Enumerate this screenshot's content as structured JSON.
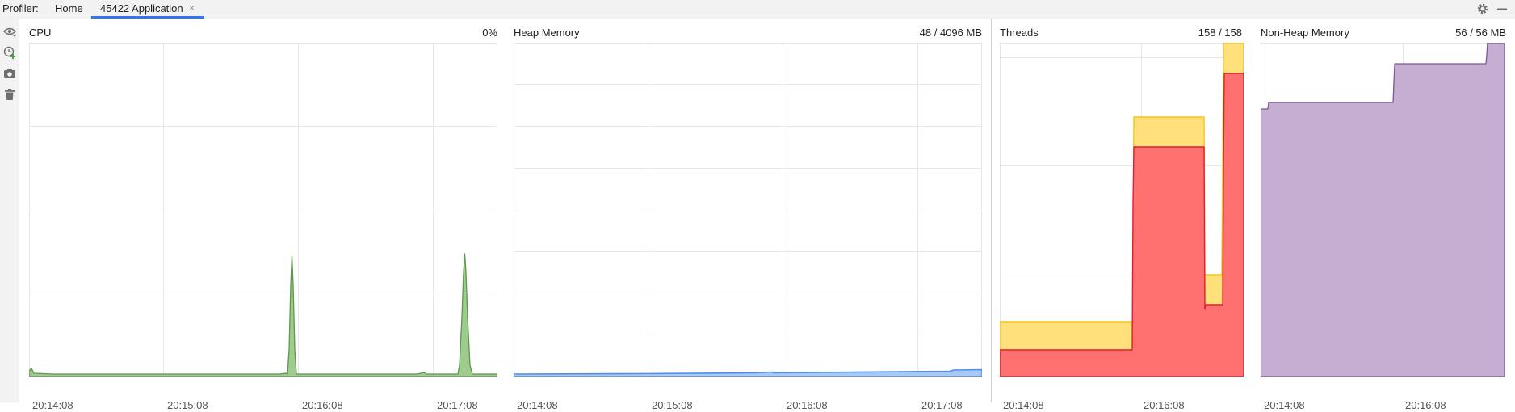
{
  "header": {
    "profiler_label": "Profiler:",
    "tabs": [
      {
        "label": "Home"
      },
      {
        "label": "45422 Application",
        "active": true
      }
    ],
    "close_glyph": "×"
  },
  "toolbar_icons": [
    "eye-icon",
    "add-session-icon",
    "snapshot-camera-icon",
    "trash-icon"
  ],
  "colors": {
    "cpu": "#5a9a4a",
    "cpu_fill": "#9fcb8e",
    "heap": "#4f8fe8",
    "threads_total": "#f5c518",
    "threads_total_fill": "#ffe07a",
    "threads_running": "#e0202a",
    "threads_running_fill": "#ff7070",
    "nonheap": "#7a5a95",
    "nonheap_fill": "#c5aed2",
    "grid": "#e6e6e6"
  },
  "panels": {
    "cpu": {
      "title": "CPU",
      "value": "0%",
      "ticks": [
        "20:14:08",
        "20:15:08",
        "20:16:08",
        "20:17:08"
      ]
    },
    "heap": {
      "title": "Heap Memory",
      "value": "48 / 4096 MB",
      "ticks": [
        "20:14:08",
        "20:15:08",
        "20:16:08",
        "20:17:08"
      ]
    },
    "threads": {
      "title": "Threads",
      "value": "158 / 158",
      "ticks": [
        "20:14:08",
        "20:16:08"
      ]
    },
    "nonheap": {
      "title": "Non-Heap Memory",
      "value": "56 / 56 MB",
      "ticks": [
        "20:14:08",
        "20:16:08"
      ]
    }
  }
}
